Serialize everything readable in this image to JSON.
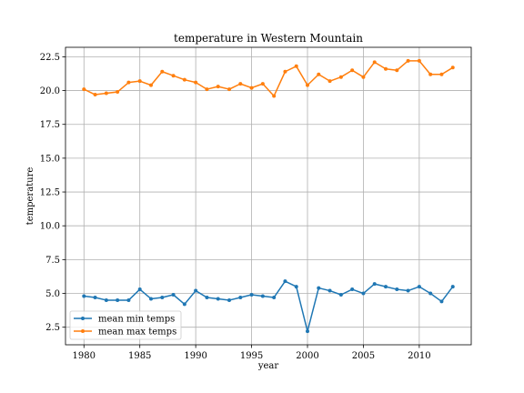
{
  "chart_data": {
    "type": "line",
    "title": "temperature in Western Mountain",
    "xlabel": "year",
    "ylabel": "temperature",
    "xlim": [
      1978.35,
      2014.65
    ],
    "ylim": [
      1.2,
      23.2
    ],
    "xticks": [
      1980,
      1985,
      1990,
      1995,
      2000,
      2005,
      2010
    ],
    "yticks": [
      2.5,
      5.0,
      7.5,
      10.0,
      12.5,
      15.0,
      17.5,
      20.0,
      22.5
    ],
    "ytick_labels": [
      "2.5",
      "5.0",
      "7.5",
      "10.0",
      "12.5",
      "15.0",
      "17.5",
      "20.0",
      "22.5"
    ],
    "grid": true,
    "legend_position": "lower-left",
    "x": [
      1980,
      1981,
      1982,
      1983,
      1984,
      1985,
      1986,
      1987,
      1988,
      1989,
      1990,
      1991,
      1992,
      1993,
      1994,
      1995,
      1996,
      1997,
      1998,
      1999,
      2000,
      2001,
      2002,
      2003,
      2004,
      2005,
      2006,
      2007,
      2008,
      2009,
      2010,
      2011,
      2012,
      2013
    ],
    "series": [
      {
        "name": "mean min temps",
        "color": "#1f77b4",
        "values": [
          4.8,
          4.7,
          4.5,
          4.5,
          4.5,
          5.3,
          4.6,
          4.7,
          4.9,
          4.2,
          5.2,
          4.7,
          4.6,
          4.5,
          4.7,
          4.9,
          4.8,
          4.7,
          5.9,
          5.5,
          2.2,
          5.4,
          5.2,
          4.9,
          5.3,
          5.0,
          5.7,
          5.5,
          5.3,
          5.2,
          5.5,
          5.0,
          4.4,
          5.5
        ]
      },
      {
        "name": "mean max temps",
        "color": "#ff7f0e",
        "values": [
          20.1,
          19.7,
          19.8,
          19.9,
          20.6,
          20.7,
          20.4,
          21.4,
          21.1,
          20.8,
          20.6,
          20.1,
          20.3,
          20.1,
          20.5,
          20.2,
          20.5,
          19.6,
          21.4,
          21.8,
          20.4,
          21.2,
          20.7,
          21.0,
          21.5,
          21.0,
          22.1,
          21.6,
          21.5,
          22.2,
          22.2,
          21.2,
          21.2,
          21.7
        ]
      }
    ]
  }
}
